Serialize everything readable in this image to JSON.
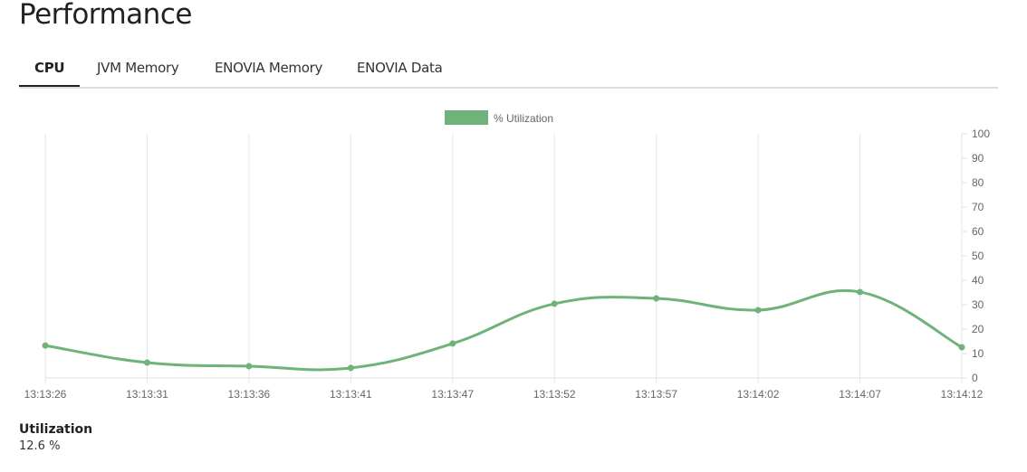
{
  "header": {
    "title": "Performance"
  },
  "tabs": [
    {
      "label": "CPU",
      "active": true
    },
    {
      "label": "JVM Memory"
    },
    {
      "label": "ENOVIA Memory"
    },
    {
      "label": "ENOVIA Data"
    }
  ],
  "chart_data": {
    "type": "line",
    "legend": {
      "label": "% Utilization",
      "position": "top"
    },
    "color": "#6fb27a",
    "x": [
      "13:13:26",
      "13:13:31",
      "13:13:36",
      "13:13:41",
      "13:13:47",
      "13:13:52",
      "13:13:57",
      "13:14:02",
      "13:14:07",
      "13:14:12"
    ],
    "series": [
      {
        "name": "% Utilization",
        "values": [
          13.3,
          6.3,
          4.8,
          4.1,
          14.1,
          30.4,
          32.6,
          27.8,
          35.2,
          12.6
        ]
      }
    ],
    "ylim": [
      0,
      100
    ],
    "yticks": [
      0,
      10,
      20,
      30,
      40,
      50,
      60,
      70,
      80,
      90,
      100
    ],
    "y_axis_position": "right",
    "grid": "vertical"
  },
  "summary": {
    "label": "Utilization",
    "value": "12.6 %"
  }
}
